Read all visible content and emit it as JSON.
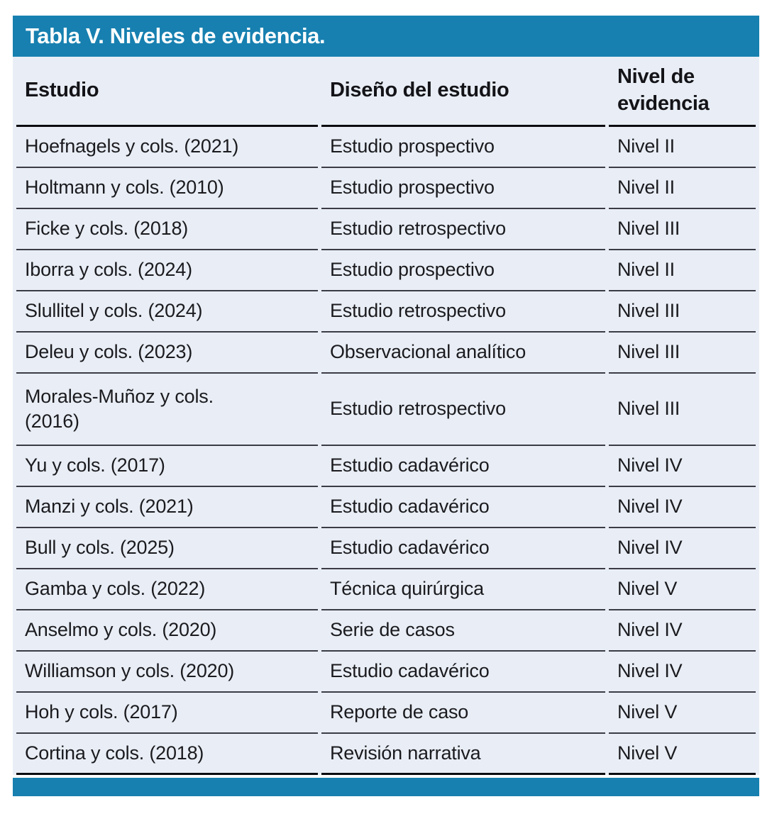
{
  "figure": {
    "title": "Tabla V. Niveles de evidencia."
  },
  "colors": {
    "accent_teal": "#1780B0",
    "table_body_bg": "#E9EEF6",
    "row_rule": "#3b3b45",
    "heavy_rule": "#0c0c10",
    "title_text": "#ffffff",
    "body_text": "#1b1b1f"
  },
  "table": {
    "columns": [
      "Estudio",
      "Diseño del estudio",
      "Nivel de evidencia"
    ],
    "rows": [
      {
        "estudio": "Hoefnagels y cols. (2021)",
        "diseno": "Estudio prospectivo",
        "nivel": "Nivel II"
      },
      {
        "estudio": "Holtmann y cols. (2010)",
        "diseno": "Estudio prospectivo",
        "nivel": "Nivel II"
      },
      {
        "estudio": "Ficke y cols. (2018)",
        "diseno": "Estudio retrospectivo",
        "nivel": "Nivel III"
      },
      {
        "estudio": "Iborra y cols. (2024)",
        "diseno": "Estudio prospectivo",
        "nivel": "Nivel II"
      },
      {
        "estudio": "Slullitel y cols. (2024)",
        "diseno": "Estudio retrospectivo",
        "nivel": "Nivel III"
      },
      {
        "estudio": "Deleu y cols. (2023)",
        "diseno": "Observacional analítico",
        "nivel": "Nivel III"
      },
      {
        "estudio": "Morales-Muñoz y cols.\n(2016)",
        "diseno": "Estudio retrospectivo",
        "nivel": "Nivel III"
      },
      {
        "estudio": "Yu y cols. (2017)",
        "diseno": "Estudio cadavérico",
        "nivel": "Nivel IV"
      },
      {
        "estudio": "Manzi y cols. (2021)",
        "diseno": "Estudio cadavérico",
        "nivel": "Nivel IV"
      },
      {
        "estudio": "Bull y cols. (2025)",
        "diseno": "Estudio cadavérico",
        "nivel": "Nivel IV"
      },
      {
        "estudio": "Gamba y cols. (2022)",
        "diseno": "Técnica quirúrgica",
        "nivel": "Nivel V"
      },
      {
        "estudio": "Anselmo y cols. (2020)",
        "diseno": "Serie de casos",
        "nivel": "Nivel IV"
      },
      {
        "estudio": "Williamson y cols. (2020)",
        "diseno": "Estudio cadavérico",
        "nivel": "Nivel IV"
      },
      {
        "estudio": "Hoh y cols. (2017)",
        "diseno": "Reporte de caso",
        "nivel": "Nivel V"
      },
      {
        "estudio": "Cortina y cols. (2018)",
        "diseno": "Revisión narrativa",
        "nivel": "Nivel V"
      }
    ]
  }
}
